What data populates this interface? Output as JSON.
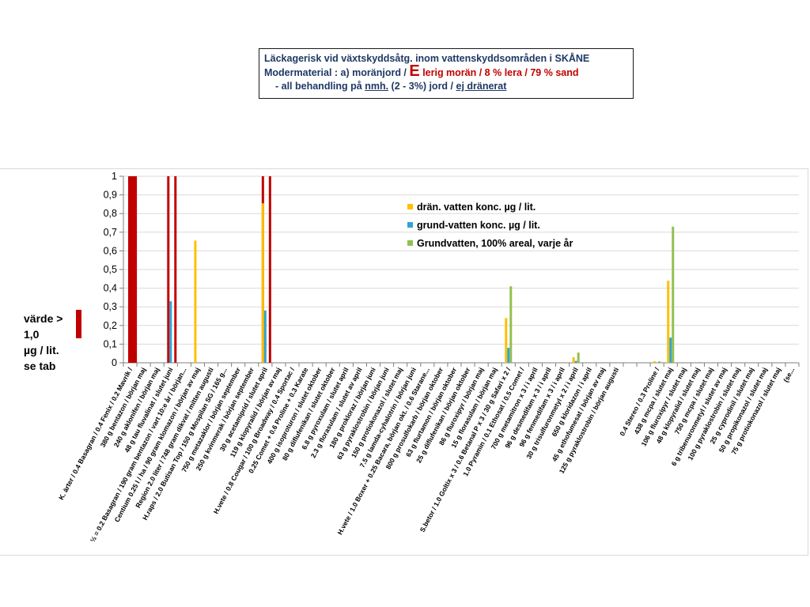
{
  "title": {
    "line1": "Läckagerisk vid växtskyddsåtg. inom vattenskyddsområden i SKÅNE",
    "line2_a": "Modermaterial : a) moränjord / ",
    "line2_b": "E",
    "line2_c": " lerig morän / 8 % lera / 79 % sand",
    "line3_a": "- all behandling på ",
    "line3_b": "nmh.",
    "line3_c": " (2 - 3%) jord / ",
    "line3_d": "ej dränerat"
  },
  "side_note": {
    "line1": "värde >",
    "line2": "1,0",
    "line3": "µg / lit.",
    "line4": "se tab"
  },
  "colors": {
    "dran": "#ffc000",
    "grund": "#31a3d4",
    "grund100": "#92c050",
    "exceed": "#c00000",
    "title_text": "#1f3864"
  },
  "chart_data": {
    "type": "bar",
    "ylim": [
      0,
      1
    ],
    "y_ticks": [
      "0",
      "0,1",
      "0,2",
      "0,3",
      "0,4",
      "0,5",
      "0,6",
      "0,7",
      "0,8",
      "0,9",
      "1"
    ],
    "legend_position": "top-center",
    "series": [
      {
        "name": "drän. vatten    konc.  µg / lit.",
        "color": "#ffc000"
      },
      {
        "name": "grund-vatten    konc.  µg / lit.",
        "color": "#31a3d4"
      },
      {
        "name": "Grundvatten, 100% areal, varje år",
        "color": "#92c050"
      }
    ],
    "categories": [
      "K. ärter / 0.4 Basagran / 0.4 Fenix / 0.2 Mavrik /",
      "380 g bentazon / början maj",
      "240 g aklonifen / början maj",
      "48 g tau fluvalinat / slutet juni",
      "½ = 0.2 Basagran / 190 gram bentazon / vart 10:e år / början...",
      "Centium 0.25 l / ha / 90 gram klomazon / början av maj",
      "Region 2.0 liter / 748 gram dikvat / mitten augusti",
      "H.raps / 2.0 Butisan Top / 150 g Mospilan SG / 165 g...",
      "750 g metazaklor / början september",
      "250 g kvinmerak / början september",
      "30 g acetamiprid / slutet april",
      "119 g klopyralid / början av maj",
      "H.vete / 0.8 Cougar / 100 g Broadway / 0.4 Sportac /",
      "0.25 Comet + 0.6 Proline + 0.3 Karate",
      "400 g isoproturon / slutet oktober",
      "80 g diflufenikan / slutet oktober",
      "6.8 g pyroxulam / slutet april",
      "2.3 g florasulam / slutet av april",
      "180 g prokloraz / början juni",
      "63 g pyraklostrobin / början juni",
      "150 g protiokonazol / slutet maj",
      "7.5 g lamda-cyhalotrin / början juni",
      "H.vete / 1.0 Boxer + 0.25 Bacara, början okt. / 0.6 Starane...",
      "800 g prosulfokarb / början oktober",
      "63 g flurtamon / början oktober",
      "25 g diflufenikan / början oktober",
      "86 g fluroxipyr / början maj",
      "15 g florasulam / början maj",
      "S.betor / 1.0 Goltix x 3 / 0.6 Betanal P x 3 / 30 g Safari x 2 /",
      "1.0 Pyramin / 0.1 Ethosat / 0.5 Comet /",
      "700 g metamitron x 3 / i april",
      "96 g desmedifam x 3 / i april",
      "96 g fenmedifam x 3 / i april",
      "30 g trisulfuronmetyl x 2 / i april",
      "650 g kloridazon / i april",
      "45 g ethofumesat / början av maj",
      "125 g pyraklostrobin / början augusti",
      "",
      "",
      "0.4 Stereo / 0.3 Proline /",
      "438 g mcpa / slutet maj",
      "106 g fluroxipyr / slutet maj",
      "48 g klopyralid / slutet maj",
      "750 g mcpa / slutet maj",
      "6 g tribenuronmetyl / slutet av maj",
      "100 g pyraklostrobin / slutet maj",
      "25 g cyprodinil / slutet maj",
      "50 g propikonazol / slutet maj",
      "75 g protiokonazol / slutet maj",
      "(se..."
    ],
    "values": [
      {
        "dran": null,
        "grund": null,
        "grund100": null,
        "exceed": true,
        "wide": true
      },
      {
        "dran": null,
        "grund": null,
        "grund100": null,
        "exceed": false
      },
      {
        "dran": null,
        "grund": null,
        "grund100": null,
        "exceed": false
      },
      {
        "dran": null,
        "grund": 0.33,
        "grund100": null,
        "exceed": true
      },
      {
        "dran": null,
        "grund": null,
        "grund100": null,
        "exceed": false
      },
      {
        "dran": 0.655,
        "grund": null,
        "grund100": null,
        "exceed": false
      },
      {
        "dran": null,
        "grund": null,
        "grund100": null,
        "exceed": false
      },
      {
        "dran": null,
        "grund": null,
        "grund100": null,
        "exceed": false
      },
      {
        "dran": null,
        "grund": null,
        "grund100": null,
        "exceed": false
      },
      {
        "dran": null,
        "grund": null,
        "grund100": null,
        "exceed": false
      },
      {
        "dran": 0.855,
        "grund": 0.28,
        "grund100": null,
        "exceed": true
      },
      {
        "dran": null,
        "grund": null,
        "grund100": null,
        "exceed": false
      },
      {
        "dran": null,
        "grund": null,
        "grund100": null,
        "exceed": false
      },
      {
        "dran": null,
        "grund": null,
        "grund100": null,
        "exceed": false
      },
      {
        "dran": null,
        "grund": null,
        "grund100": null,
        "exceed": false
      },
      {
        "dran": null,
        "grund": null,
        "grund100": null,
        "exceed": false
      },
      {
        "dran": null,
        "grund": null,
        "grund100": null,
        "exceed": false
      },
      {
        "dran": null,
        "grund": null,
        "grund100": null,
        "exceed": false
      },
      {
        "dran": null,
        "grund": null,
        "grund100": null,
        "exceed": false
      },
      {
        "dran": null,
        "grund": null,
        "grund100": null,
        "exceed": false
      },
      {
        "dran": null,
        "grund": null,
        "grund100": null,
        "exceed": false
      },
      {
        "dran": null,
        "grund": null,
        "grund100": null,
        "exceed": false
      },
      {
        "dran": null,
        "grund": null,
        "grund100": null,
        "exceed": false
      },
      {
        "dran": null,
        "grund": null,
        "grund100": null,
        "exceed": false
      },
      {
        "dran": null,
        "grund": null,
        "grund100": null,
        "exceed": false
      },
      {
        "dran": null,
        "grund": null,
        "grund100": null,
        "exceed": false
      },
      {
        "dran": null,
        "grund": null,
        "grund100": null,
        "exceed": false
      },
      {
        "dran": null,
        "grund": null,
        "grund100": null,
        "exceed": false
      },
      {
        "dran": 0.24,
        "grund": 0.08,
        "grund100": 0.41,
        "exceed": false
      },
      {
        "dran": null,
        "grund": null,
        "grund100": null,
        "exceed": false
      },
      {
        "dran": null,
        "grund": null,
        "grund100": null,
        "exceed": false
      },
      {
        "dran": null,
        "grund": null,
        "grund100": null,
        "exceed": false
      },
      {
        "dran": null,
        "grund": null,
        "grund100": null,
        "exceed": false
      },
      {
        "dran": 0.03,
        "grund": 0.01,
        "grund100": 0.055,
        "exceed": false
      },
      {
        "dran": null,
        "grund": null,
        "grund100": null,
        "exceed": false
      },
      {
        "dran": null,
        "grund": null,
        "grund100": null,
        "exceed": false
      },
      {
        "dran": null,
        "grund": null,
        "grund100": null,
        "exceed": false
      },
      {
        "dran": null,
        "grund": null,
        "grund100": null,
        "exceed": false
      },
      {
        "dran": null,
        "grund": null,
        "grund100": null,
        "exceed": false
      },
      {
        "dran": 0.008,
        "grund": null,
        "grund100": 0.008,
        "exceed": false
      },
      {
        "dran": 0.44,
        "grund": 0.135,
        "grund100": 0.73,
        "exceed": false
      },
      {
        "dran": null,
        "grund": null,
        "grund100": null,
        "exceed": false
      },
      {
        "dran": null,
        "grund": null,
        "grund100": 0.004,
        "exceed": false
      },
      {
        "dran": null,
        "grund": null,
        "grund100": null,
        "exceed": false
      },
      {
        "dran": null,
        "grund": null,
        "grund100": null,
        "exceed": false
      },
      {
        "dran": null,
        "grund": null,
        "grund100": null,
        "exceed": false
      },
      {
        "dran": null,
        "grund": null,
        "grund100": null,
        "exceed": false
      },
      {
        "dran": null,
        "grund": null,
        "grund100": null,
        "exceed": false
      },
      {
        "dran": null,
        "grund": null,
        "grund100": null,
        "exceed": false
      },
      {
        "dran": null,
        "grund": null,
        "grund100": null,
        "exceed": false
      }
    ]
  }
}
